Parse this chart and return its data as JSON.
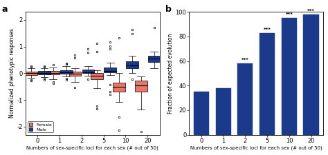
{
  "panel_a": {
    "categories": [
      0,
      1,
      2,
      5,
      10,
      20
    ],
    "female_boxes": {
      "medians": [
        0.0,
        0.02,
        -0.02,
        -0.1,
        -0.5,
        -0.45
      ],
      "q1": [
        -0.07,
        -0.05,
        -0.1,
        -0.22,
        -0.68,
        -0.68
      ],
      "q3": [
        0.07,
        0.1,
        0.06,
        0.02,
        -0.35,
        -0.28
      ],
      "whislo": [
        -0.18,
        -0.22,
        -0.32,
        -0.55,
        -1.08,
        -1.35
      ],
      "whishi": [
        0.18,
        0.22,
        0.18,
        0.12,
        0.0,
        -0.12
      ],
      "fliers_low": [
        [
          -0.24,
          -0.28
        ],
        [
          -0.32,
          -0.38
        ],
        [
          -0.52
        ],
        [
          -1.22,
          -1.32
        ],
        [
          -1.65,
          -2.12
        ],
        [
          -2.18
        ]
      ],
      "fliers_high": [
        [
          0.24,
          0.28
        ],
        [
          0.32
        ],
        [
          0.58,
          0.68
        ],
        [
          0.82,
          1.12
        ],
        [
          1.32
        ],
        []
      ]
    },
    "male_boxes": {
      "medians": [
        0.02,
        0.05,
        0.05,
        0.1,
        0.3,
        0.55
      ],
      "q1": [
        -0.04,
        -0.02,
        0.0,
        0.05,
        0.18,
        0.42
      ],
      "q3": [
        0.08,
        0.12,
        0.14,
        0.22,
        0.46,
        0.66
      ],
      "whislo": [
        -0.14,
        -0.12,
        -0.08,
        -0.06,
        0.0,
        0.2
      ],
      "whishi": [
        0.18,
        0.26,
        0.26,
        0.4,
        0.66,
        0.8
      ],
      "fliers_low": [
        [
          -0.2,
          -0.24
        ],
        [
          -0.2,
          -0.24
        ],
        [
          -0.22
        ],
        [
          -0.42,
          -0.68,
          -0.78
        ],
        [
          -0.22
        ],
        []
      ],
      "fliers_high": [
        [
          0.24,
          0.28
        ],
        [
          0.34,
          0.38
        ],
        [
          0.78,
          0.92
        ],
        [
          0.92,
          1.02,
          1.18
        ],
        [
          1.48,
          1.65
        ],
        [
          1.72
        ]
      ]
    },
    "female_color": "#E8766A",
    "male_color": "#1B3A8C",
    "ylabel": "Normalized phenotypic responses",
    "xlabel": "Numbers of sex-specific loci for each sex (# out of 50)",
    "ylim": [
      -2.3,
      2.3
    ],
    "yticks": [
      -2,
      -1,
      0,
      1,
      2
    ],
    "title": "a"
  },
  "panel_b": {
    "categories": [
      0,
      1,
      2,
      5,
      10,
      20
    ],
    "values": [
      35,
      38,
      58,
      83,
      95,
      98
    ],
    "bar_color": "#1B3A8C",
    "stars": [
      "",
      "",
      "***",
      "***",
      "***",
      "***"
    ],
    "ylabel": "Fraction of expected evolution",
    "xlabel": "Numbers of sex-specific loci for each sex (# out of 50)",
    "ylim": [
      0,
      100
    ],
    "yticks": [
      0,
      20,
      40,
      60,
      80,
      100
    ],
    "title": "b"
  }
}
